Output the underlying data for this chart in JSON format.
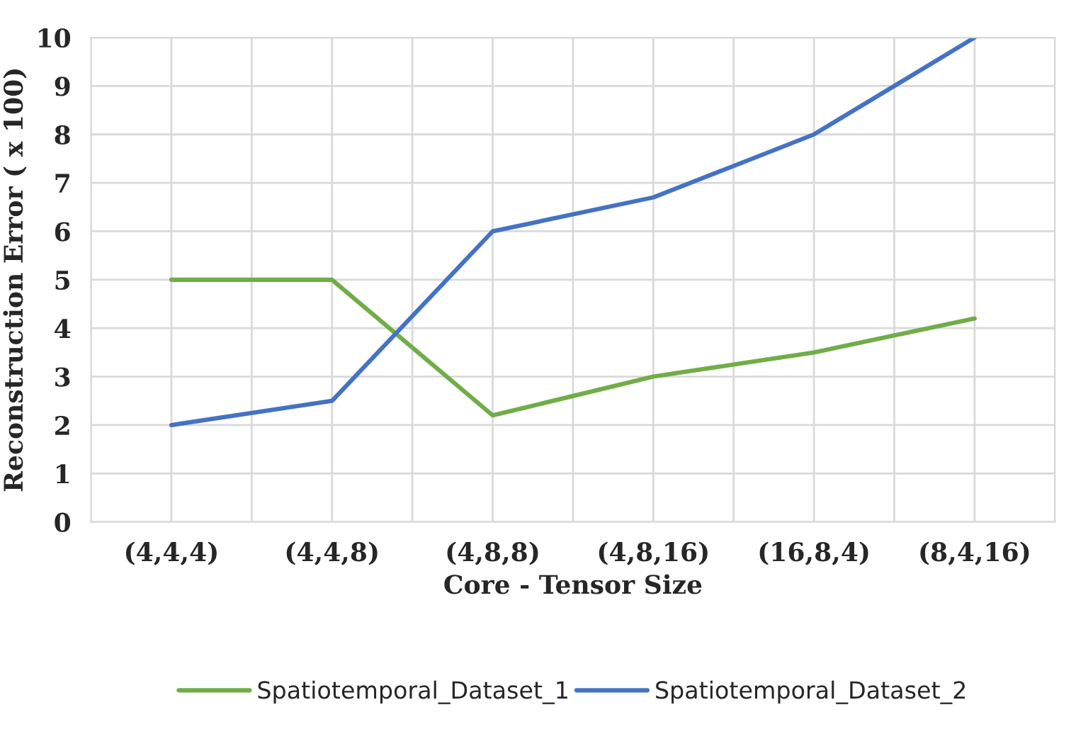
{
  "chart_data": {
    "type": "line",
    "xlabel": "Core - Tensor Size",
    "ylabel": "Reconstruction Error ( x 100)",
    "categories": [
      "(4,4,4)",
      "(4,4,8)",
      "(4,8,8)",
      "(4,8,16)",
      "(16,8,4)",
      "(8,4,16)"
    ],
    "series": [
      {
        "name": "Spatiotemporal_Dataset_1",
        "color": "#70ad47",
        "values": [
          5,
          5,
          2.2,
          3,
          3.5,
          4.2
        ]
      },
      {
        "name": "Spatiotemporal_Dataset_2",
        "color": "#4472c4",
        "values": [
          2,
          2.5,
          6,
          6.7,
          8,
          10
        ]
      }
    ],
    "ylim": [
      0,
      10
    ],
    "yticks": [
      0,
      1,
      2,
      3,
      4,
      5,
      6,
      7,
      8,
      9,
      10
    ],
    "grid": true,
    "legend": "bottom",
    "marker": "none",
    "line_style": "solid"
  }
}
